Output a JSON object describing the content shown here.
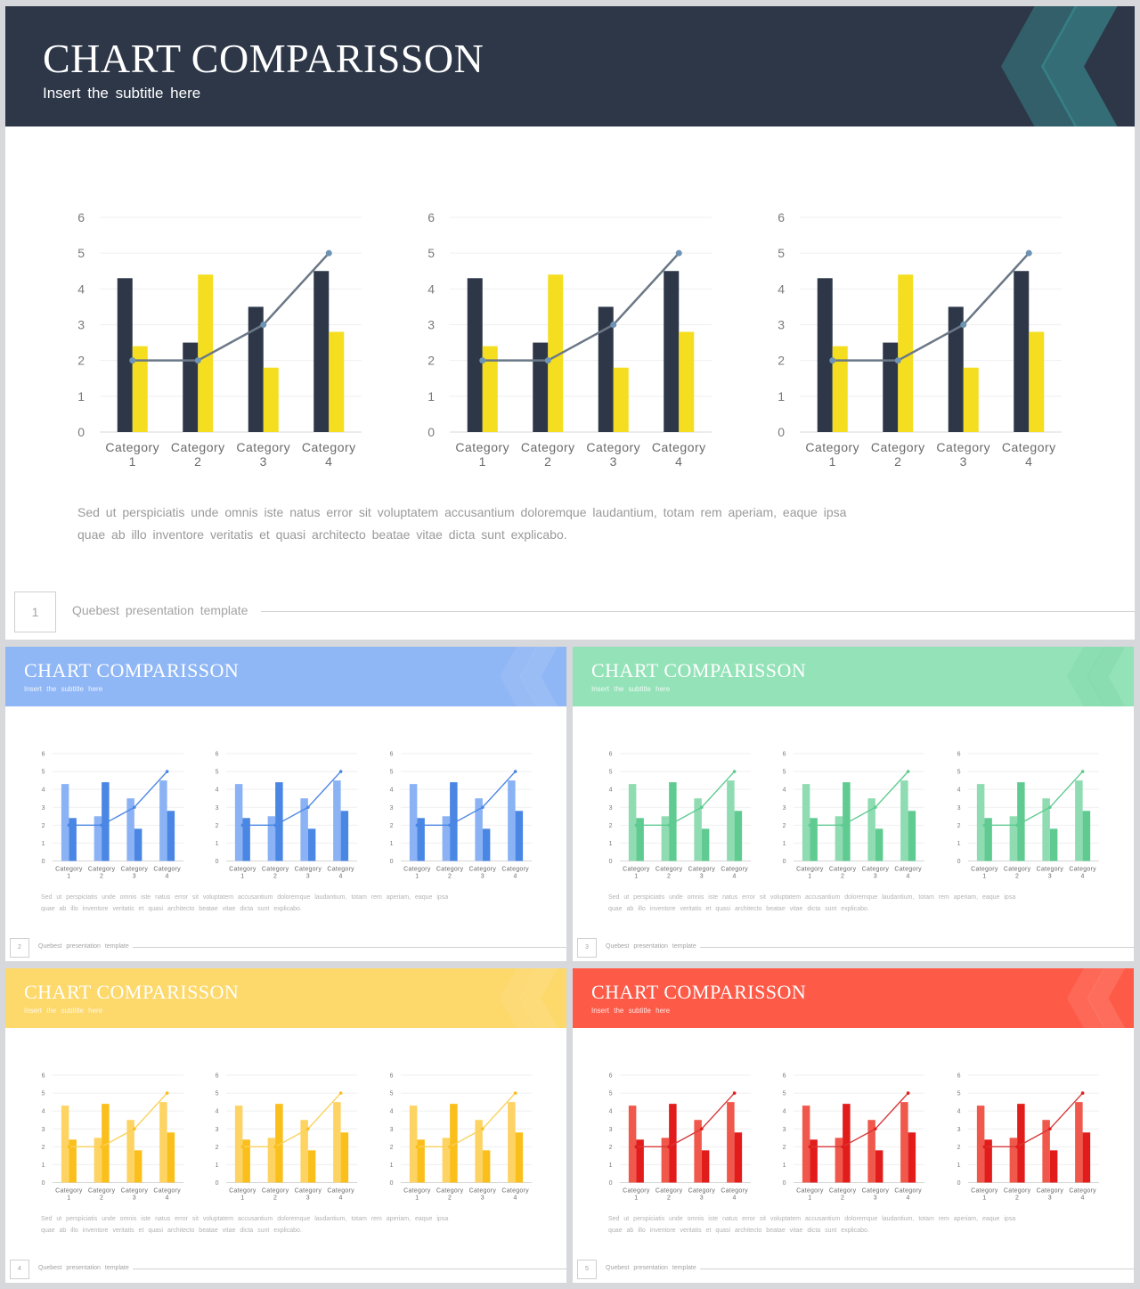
{
  "slides": [
    {
      "title": "CHART COMPARISSON",
      "subtitle": "Insert  the  subtitle  here",
      "body_lines": [
        "Sed ut perspiciatis  unde omnis iste natus error sit voluptatem  accusantium  doloremque  laudantium,  totam rem aperiam,  eaque ipsa",
        "quae ab illo inventore  veritatis  et quasi architecto  beatae  vitae dicta  sunt explicabo."
      ],
      "page_number": "1",
      "footer": "Quebest presentation  template",
      "colors": {
        "header": "#2d3748",
        "bar_a": "#2d3748",
        "bar_b": "#f4de1f",
        "line": "#6b7886",
        "marker": "#6e94b3",
        "deco": "#3a9a9c"
      }
    },
    {
      "title": "CHART COMPARISSON",
      "subtitle": "Insert  the  subtitle  here",
      "body_lines": [
        "Sed ut perspiciatis  unde omnis iste natus error sit voluptatem  accusantium  doloremque  laudantium,  totam rem aperiam,  eaque ipsa",
        "quae ab illo inventore  veritatis  et quasi architecto  beatae  vitae dicta  sunt explicabo."
      ],
      "page_number": "2",
      "footer": "Quebest presentation  template",
      "colors": {
        "header": "#8fb6f5",
        "bar_a": "#8ab2f4",
        "bar_b": "#4a86e4",
        "line": "#4a86e4",
        "marker": "#4a86e4",
        "deco": "#a9c6f7"
      }
    },
    {
      "title": "CHART COMPARISSON",
      "subtitle": "Insert  the  subtitle  here",
      "body_lines": [
        "Sed ut perspiciatis  unde omnis iste natus error sit voluptatem  accusantium  doloremque  laudantium,  totam rem aperiam,  eaque ipsa",
        "quae ab illo inventore  veritatis  et quasi architecto  beatae  vitae dicta  sunt explicabo."
      ],
      "page_number": "3",
      "footer": "Quebest presentation  template",
      "colors": {
        "header": "#93e2b8",
        "bar_a": "#8fdcb2",
        "bar_b": "#5fcb91",
        "line": "#5fcb91",
        "marker": "#5fcb91",
        "deco": "#7fd7a6"
      }
    },
    {
      "title": "CHART COMPARISSON",
      "subtitle": "Insert  the  subtitle  here",
      "body_lines": [
        "Sed ut perspiciatis  unde omnis iste natus error sit voluptatem  accusantium  doloremque  laudantium,  totam rem aperiam,  eaque ipsa",
        "quae ab illo inventore  veritatis  et quasi architecto  beatae  vitae dicta  sunt explicabo."
      ],
      "page_number": "4",
      "footer": "Quebest presentation  template",
      "colors": {
        "header": "#fdd86b",
        "bar_a": "#fdd463",
        "bar_b": "#fbbf1b",
        "line": "#fbd15a",
        "marker": "#fbbf1b",
        "deco": "#fde08a"
      }
    },
    {
      "title": "CHART COMPARISSON",
      "subtitle": "Insert  the  subtitle  here",
      "body_lines": [
        "Sed ut perspiciatis  unde omnis iste natus error sit voluptatem  accusantium  doloremque  laudantium,  totam rem aperiam,  eaque ipsa",
        "quae ab illo inventore  veritatis  et quasi architecto  beatae  vitae dicta  sunt explicabo."
      ],
      "page_number": "5",
      "footer": "Quebest presentation  template",
      "colors": {
        "header": "#fe5a48",
        "bar_a": "#f0584b",
        "bar_b": "#e21b1b",
        "line": "#d6393a",
        "marker": "#e21b1b",
        "deco": "#ff8474"
      }
    }
  ],
  "chart_data": {
    "type": "bar",
    "categories": [
      "Category 1",
      "Category 2",
      "Category 3",
      "Category 4"
    ],
    "category_lines": [
      [
        "Category",
        "1"
      ],
      [
        "Category",
        "2"
      ],
      [
        "Category",
        "3"
      ],
      [
        "Category",
        "4"
      ]
    ],
    "series": [
      {
        "type": "bar",
        "values": [
          4.3,
          2.5,
          3.5,
          4.5
        ]
      },
      {
        "type": "bar",
        "values": [
          2.4,
          4.4,
          1.8,
          2.8
        ]
      },
      {
        "type": "line",
        "values": [
          2,
          2,
          3,
          5
        ]
      }
    ],
    "ylim": [
      0,
      6
    ],
    "yticks": [
      0,
      1,
      2,
      3,
      4,
      5,
      6
    ],
    "grid": true,
    "charts_per_slide": 3
  }
}
